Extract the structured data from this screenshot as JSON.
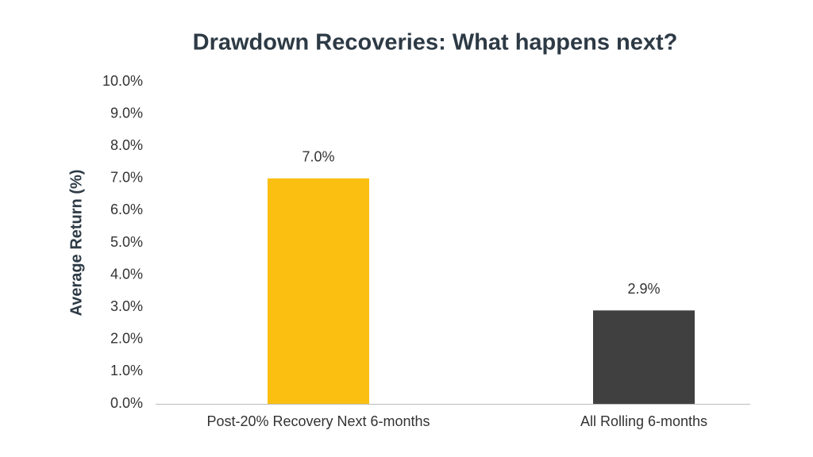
{
  "chart_data": {
    "type": "bar",
    "title": "Drawdown Recoveries: What happens next?",
    "y_label": "Average Return (%)",
    "categories": [
      "Post-20% Recovery Next 6-months",
      "All Rolling 6-months"
    ],
    "values": [
      7.0,
      2.9
    ],
    "value_labels": [
      "7.0%",
      "2.9%"
    ],
    "colors": [
      "#fbbf12",
      "#404040"
    ],
    "ylim": [
      0,
      10
    ],
    "yticks": [
      {
        "value": 0,
        "label": "0.0%"
      },
      {
        "value": 1,
        "label": "1.0%"
      },
      {
        "value": 2,
        "label": "2.0%"
      },
      {
        "value": 3,
        "label": "3.0%"
      },
      {
        "value": 4,
        "label": "4.0%"
      },
      {
        "value": 5,
        "label": "5.0%"
      },
      {
        "value": 6,
        "label": "6.0%"
      },
      {
        "value": 7,
        "label": "7.0%"
      },
      {
        "value": 8,
        "label": "8.0%"
      },
      {
        "value": 9,
        "label": "9.0%"
      },
      {
        "value": 10,
        "label": "10.0%"
      }
    ],
    "grid": false
  }
}
